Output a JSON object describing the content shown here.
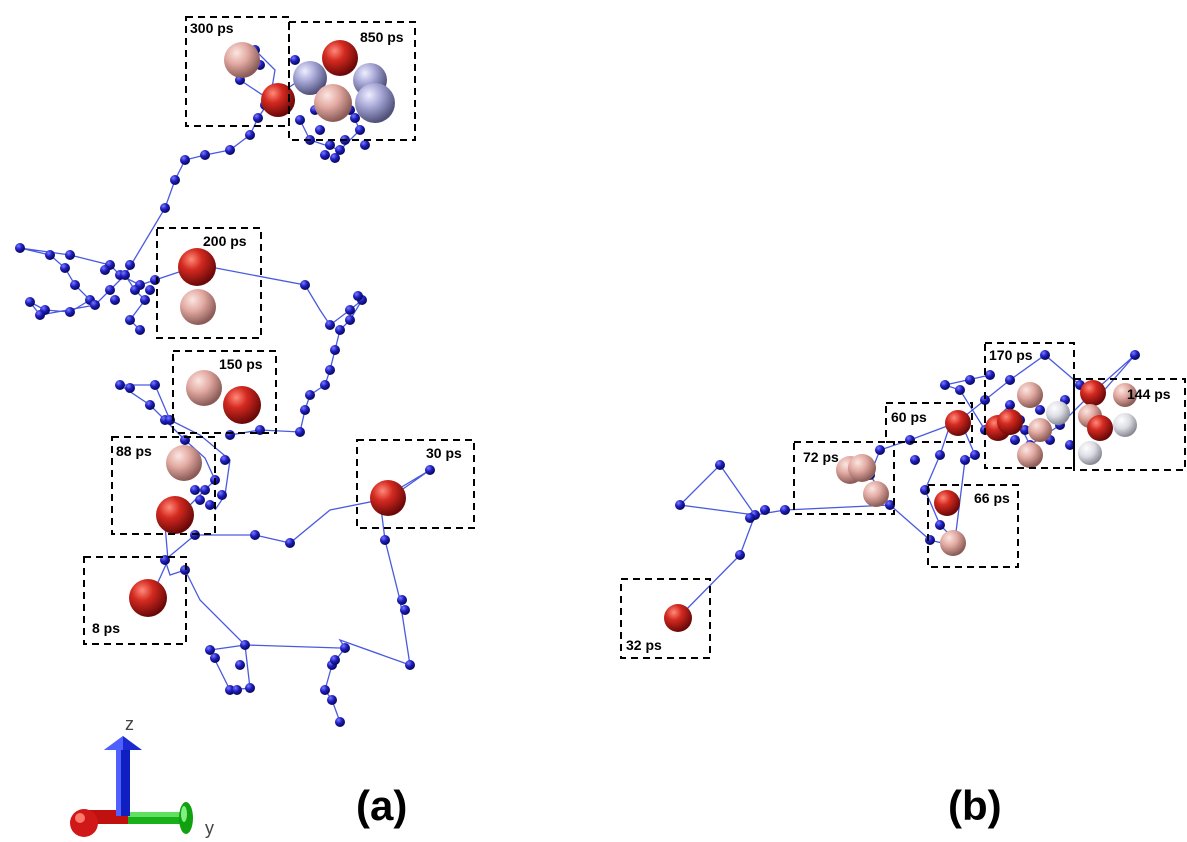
{
  "panels": {
    "a": {
      "label": "(a)",
      "boxes": [
        "300 ps",
        "850 ps",
        "200 ps",
        "150 ps",
        "88 ps",
        "30 ps",
        "8 ps"
      ]
    },
    "b": {
      "label": "(b)",
      "boxes": [
        "170 ps",
        "144 ps",
        "60 ps",
        "72 ps",
        "66 ps",
        "32 ps"
      ]
    }
  },
  "axes": {
    "z": "z",
    "y": "y"
  },
  "colors": {
    "trajectory_line": "#4a5ae0",
    "trajectory_node": "#1a1ab8",
    "sphere_red": "#c81e1e",
    "sphere_pink": "#e8b0a8",
    "sphere_lavender": "#a8a8d8",
    "sphere_white": "#e8e8ee",
    "axis_z": "#1a2ad0",
    "axis_y": "#18c018",
    "axis_x": "#d01818"
  }
}
